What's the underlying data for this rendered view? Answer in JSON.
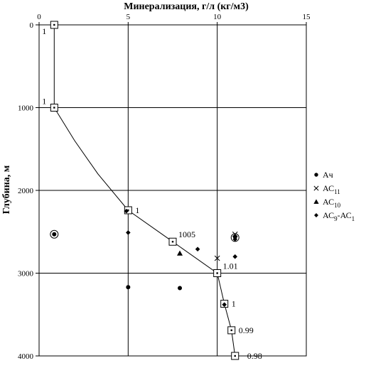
{
  "chart_data": {
    "type": "scatter",
    "title": "Минерализация, г/л (кг/м3)",
    "ylabel": "Глубина, м",
    "xlim": [
      0,
      15
    ],
    "ylim": [
      4000,
      0
    ],
    "x_axis_position": "top",
    "y_inverted": true,
    "grid": true,
    "legend_position": "right",
    "xticks": [
      "0",
      "5",
      "10",
      "15"
    ],
    "yticks": [
      "0",
      "1000",
      "2000",
      "3000",
      "4000"
    ],
    "line": {
      "name": "",
      "marker": "hollow-square",
      "points": [
        {
          "x": 0.85,
          "y": 0
        },
        {
          "x": 0.85,
          "y": 1000
        },
        {
          "x": 2.0,
          "y": 1400
        },
        {
          "x": 3.3,
          "y": 1800
        },
        {
          "x": 5.0,
          "y": 2240
        },
        {
          "x": 7.5,
          "y": 2620
        },
        {
          "x": 10.0,
          "y": 3000
        },
        {
          "x": 10.4,
          "y": 3370
        },
        {
          "x": 10.8,
          "y": 3690
        },
        {
          "x": 11.0,
          "y": 4000
        }
      ],
      "square_indices": [
        0,
        1,
        4,
        5,
        6,
        7,
        8,
        9
      ]
    },
    "annotations": [
      {
        "text": "1",
        "x": 0.85,
        "y": 0,
        "pos": "below-left"
      },
      {
        "text": "1",
        "x": 0.85,
        "y": 1000,
        "pos": "above-left"
      },
      {
        "text": "1",
        "x": 5.0,
        "y": 2240,
        "pos": "right"
      },
      {
        "text": "1005",
        "x": 7.5,
        "y": 2620,
        "pos": "above-right"
      },
      {
        "text": "1.01",
        "x": 10.0,
        "y": 3000,
        "pos": "above-right"
      },
      {
        "text": "1",
        "x": 10.4,
        "y": 3370,
        "pos": "right"
      },
      {
        "text": "0.99",
        "x": 10.8,
        "y": 3690,
        "pos": "right"
      },
      {
        "text": "0.98",
        "x": 11.0,
        "y": 4000,
        "pos": "right-dash"
      }
    ],
    "series": [
      {
        "name": "Ач",
        "name_sub": "",
        "name_tail": "",
        "marker": "circle",
        "points": [
          {
            "x": 0.85,
            "y": 2530
          },
          {
            "x": 5.0,
            "y": 3170
          },
          {
            "x": 7.9,
            "y": 3180
          },
          {
            "x": 11.0,
            "y": 2560
          }
        ]
      },
      {
        "name": "АС",
        "name_sub": "11",
        "name_tail": "",
        "marker": "x",
        "points": [
          {
            "x": 10.0,
            "y": 2820
          },
          {
            "x": 11.0,
            "y": 2530
          }
        ]
      },
      {
        "name": "АС",
        "name_sub": "10",
        "name_tail": "",
        "marker": "triangle",
        "points": [
          {
            "x": 7.9,
            "y": 2760
          }
        ]
      },
      {
        "name": "АС",
        "name_sub": "9",
        "name_tail": "-АС",
        "name_tail_sub": "1",
        "marker": "diamond",
        "points": [
          {
            "x": 5.0,
            "y": 2510
          },
          {
            "x": 8.9,
            "y": 2710
          },
          {
            "x": 11.0,
            "y": 2800
          },
          {
            "x": 4.9,
            "y": 2250
          },
          {
            "x": 10.4,
            "y": 3380
          },
          {
            "x": 11.0,
            "y": 2590
          }
        ]
      }
    ],
    "ringed_points": [
      {
        "x": 0.85,
        "y": 2530
      },
      {
        "x": 11.0,
        "y": 2570
      }
    ]
  }
}
